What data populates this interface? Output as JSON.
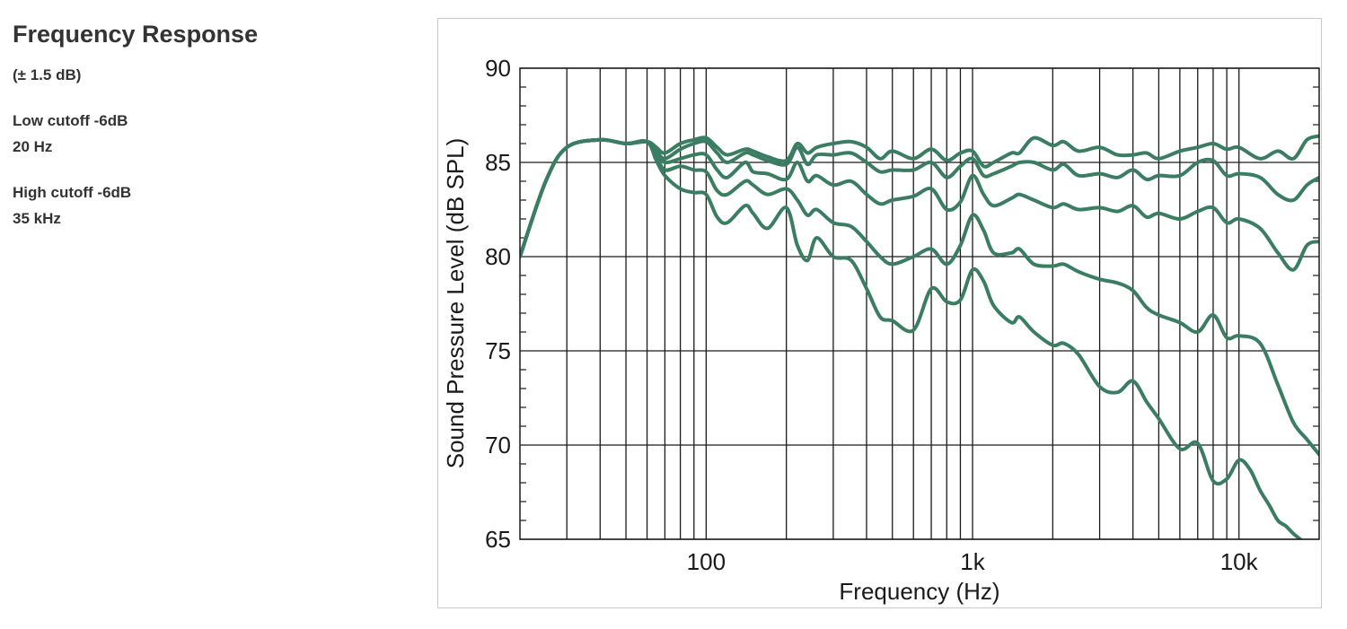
{
  "specs": {
    "title": "Frequency Response",
    "tolerance": "(± 1.5 dB)",
    "low_cutoff_label": "Low cutoff -6dB",
    "low_cutoff_value": "20 Hz",
    "high_cutoff_label": "High cutoff -6dB",
    "high_cutoff_value": "35 kHz"
  },
  "colors": {
    "curve": "#3b7d63",
    "grid": "#1a1a1a",
    "text": "#333333"
  },
  "chart_data": {
    "type": "line",
    "title": "",
    "xlabel": "Frequency (Hz)",
    "ylabel": "Sound Pressure Level (dB SPL)",
    "xscale": "log",
    "xlim": [
      20,
      20000
    ],
    "ylim": [
      65,
      90
    ],
    "x_tick_labels": [
      {
        "value": 100,
        "label": "100"
      },
      {
        "value": 1000,
        "label": "1k"
      },
      {
        "value": 10000,
        "label": "10k"
      }
    ],
    "y_tick_labels": [
      {
        "value": 65,
        "label": "65"
      },
      {
        "value": 70,
        "label": "70"
      },
      {
        "value": 75,
        "label": "75"
      },
      {
        "value": 80,
        "label": "80"
      },
      {
        "value": 85,
        "label": "85"
      },
      {
        "value": 90,
        "label": "90"
      }
    ],
    "grid": true,
    "legend": "none",
    "series": [
      {
        "x": [
          20,
          25,
          30,
          40,
          50,
          60,
          65,
          70,
          80,
          90,
          100,
          110,
          120,
          140,
          150,
          170,
          200,
          220,
          240,
          260,
          300,
          350,
          400,
          450,
          500,
          600,
          700,
          800,
          900,
          1000,
          1100,
          1200,
          1400,
          1500,
          1700,
          2000,
          2200,
          2500,
          3000,
          3500,
          4000,
          4500,
          5000,
          6000,
          7000,
          8000,
          9000,
          10000,
          12000,
          14000,
          16000,
          18000,
          20000
        ],
        "y": [
          80,
          84,
          85.8,
          86.2,
          86.0,
          86.1,
          85.8,
          85.5,
          86.0,
          86.2,
          86.3,
          85.8,
          85.4,
          85.7,
          85.6,
          85.3,
          85.1,
          86.0,
          85.5,
          85.8,
          86.0,
          86.1,
          85.8,
          85.2,
          85.6,
          85.2,
          85.7,
          85.1,
          85.5,
          85.6,
          84.8,
          85.0,
          85.5,
          85.5,
          86.3,
          85.9,
          86.1,
          85.6,
          85.8,
          85.4,
          85.4,
          85.5,
          85.2,
          85.6,
          85.8,
          86.0,
          85.7,
          85.8,
          85.2,
          85.6,
          85.2,
          86.2,
          86.4
        ]
      },
      {
        "x": [
          20,
          25,
          30,
          40,
          50,
          60,
          65,
          70,
          80,
          90,
          100,
          110,
          120,
          140,
          150,
          170,
          200,
          220,
          240,
          260,
          300,
          350,
          400,
          450,
          500,
          600,
          700,
          800,
          900,
          1000,
          1100,
          1200,
          1400,
          1500,
          1700,
          2000,
          2200,
          2500,
          3000,
          3500,
          4000,
          4500,
          5000,
          6000,
          7000,
          8000,
          9000,
          10000,
          12000,
          14000,
          16000,
          18000,
          20000
        ],
        "y": [
          80,
          84,
          85.8,
          86.2,
          86.0,
          86.1,
          85.6,
          85.2,
          85.7,
          86.0,
          86.1,
          85.5,
          85.0,
          85.5,
          85.4,
          85.1,
          84.9,
          85.8,
          84.9,
          85.4,
          85.4,
          85.5,
          85.0,
          84.5,
          84.6,
          84.6,
          85.0,
          84.2,
          84.8,
          85.2,
          84.3,
          84.4,
          84.8,
          85.0,
          85.0,
          84.6,
          84.9,
          84.3,
          84.4,
          84.2,
          84.6,
          84.1,
          84.3,
          84.3,
          85.0,
          85.1,
          84.3,
          84.4,
          84.2,
          83.3,
          83.0,
          83.8,
          84.2
        ]
      },
      {
        "x": [
          20,
          25,
          30,
          40,
          50,
          60,
          65,
          70,
          80,
          90,
          100,
          110,
          120,
          140,
          150,
          170,
          200,
          220,
          240,
          260,
          300,
          350,
          400,
          450,
          500,
          600,
          700,
          800,
          900,
          1000,
          1100,
          1200,
          1400,
          1500,
          1700,
          2000,
          2200,
          2500,
          3000,
          3500,
          4000,
          4500,
          5000,
          6000,
          7000,
          8000,
          9000,
          10000,
          12000,
          14000,
          16000,
          18000,
          20000
        ],
        "y": [
          80,
          84,
          85.8,
          86.2,
          86.0,
          86.1,
          85.5,
          85.0,
          85.2,
          85.4,
          85.4,
          84.6,
          84.2,
          85.0,
          84.5,
          84.4,
          84.1,
          85.0,
          84.0,
          84.3,
          83.8,
          84.0,
          83.3,
          82.8,
          83.0,
          83.2,
          83.6,
          82.5,
          82.9,
          84.3,
          83.3,
          82.7,
          83.1,
          83.3,
          83.0,
          82.6,
          82.8,
          82.5,
          82.6,
          82.4,
          82.7,
          82.1,
          82.3,
          82.0,
          82.4,
          82.6,
          81.8,
          82.0,
          81.5,
          80.2,
          79.3,
          80.6,
          80.8
        ]
      },
      {
        "x": [
          20,
          25,
          30,
          40,
          50,
          60,
          65,
          70,
          80,
          90,
          100,
          110,
          120,
          140,
          150,
          170,
          200,
          220,
          240,
          260,
          300,
          350,
          400,
          450,
          500,
          600,
          700,
          800,
          900,
          1000,
          1100,
          1200,
          1400,
          1500,
          1700,
          2000,
          2200,
          2500,
          3000,
          3500,
          4000,
          4500,
          5000,
          6000,
          7000,
          8000,
          9000,
          10000,
          12000,
          14000,
          16000,
          18000,
          20000
        ],
        "y": [
          80,
          84,
          85.8,
          86.2,
          86.0,
          86.1,
          85.3,
          84.6,
          84.8,
          84.6,
          84.5,
          83.5,
          83.3,
          84.0,
          83.8,
          83.3,
          83.6,
          83.0,
          82.2,
          82.5,
          81.8,
          81.6,
          80.8,
          80.0,
          79.6,
          80.0,
          80.4,
          79.6,
          80.6,
          82.2,
          81.4,
          80.2,
          80.2,
          80.4,
          79.6,
          79.5,
          79.6,
          79.2,
          78.8,
          78.6,
          78.2,
          77.3,
          76.9,
          76.5,
          76.0,
          76.9,
          75.7,
          75.8,
          75.4,
          73.2,
          71.2,
          70.3,
          69.5
        ]
      },
      {
        "x": [
          20,
          25,
          30,
          40,
          50,
          60,
          65,
          70,
          80,
          90,
          100,
          110,
          120,
          140,
          150,
          170,
          200,
          220,
          240,
          260,
          300,
          350,
          400,
          450,
          500,
          600,
          700,
          800,
          900,
          1000,
          1100,
          1200,
          1400,
          1500,
          1700,
          2000,
          2200,
          2500,
          3000,
          3500,
          4000,
          4500,
          5000,
          6000,
          7000,
          8000,
          9000,
          10000,
          11000,
          12000,
          13000,
          14000,
          15000,
          16000,
          17000
        ],
        "y": [
          80,
          84,
          85.8,
          86.2,
          86.0,
          86.1,
          85.1,
          84.3,
          83.6,
          83.4,
          83.3,
          82.1,
          81.8,
          82.7,
          82.3,
          81.5,
          82.6,
          80.6,
          79.8,
          81.0,
          80.0,
          79.8,
          78.3,
          76.8,
          76.6,
          76.1,
          78.3,
          77.6,
          77.7,
          79.3,
          78.7,
          77.4,
          76.5,
          76.8,
          76.0,
          75.3,
          75.4,
          74.8,
          73.1,
          72.8,
          73.4,
          72.3,
          71.4,
          69.8,
          70.1,
          68.1,
          68.2,
          69.2,
          68.7,
          67.6,
          66.8,
          66.0,
          65.7,
          65.3,
          65.0
        ]
      }
    ]
  }
}
